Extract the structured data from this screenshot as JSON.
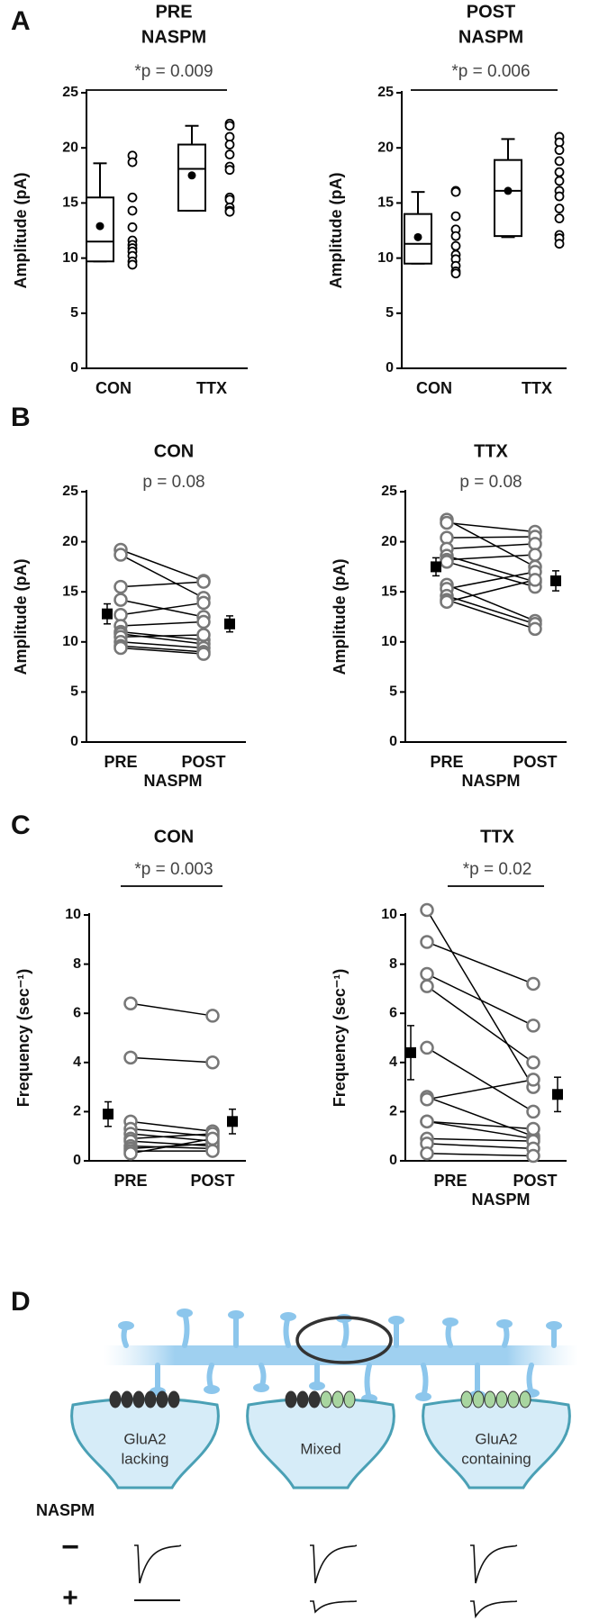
{
  "panels": [
    "A",
    "B",
    "C",
    "D"
  ],
  "chart_data": [
    {
      "type": "box",
      "title": [
        "PRE",
        "NASPM"
      ],
      "annotation": "*p = 0.009",
      "bracket": true,
      "ylabel": "Amplitude (pA)",
      "ylim": [
        0,
        25
      ],
      "yticks": [
        0,
        5,
        10,
        15,
        20,
        25
      ],
      "categories": [
        "CON",
        "TTX"
      ],
      "color": "#000000",
      "boxes": [
        {
          "min": 9.7,
          "q1": 9.7,
          "median": 11.5,
          "q3": 15.5,
          "max": 18.6,
          "mean": 12.9,
          "points": [
            19.3,
            18.7,
            15.5,
            14.3,
            12.8,
            11.6,
            11.2,
            10.9,
            10.6,
            10.2,
            9.7,
            9.4
          ]
        },
        {
          "min": 14.3,
          "q1": 14.3,
          "median": 18.1,
          "q3": 20.3,
          "max": 22.0,
          "mean": 17.5,
          "points": [
            22.2,
            22.0,
            21.0,
            20.3,
            19.4,
            18.3,
            18.0,
            15.5,
            15.3,
            14.6,
            14.3,
            14.2
          ]
        }
      ]
    },
    {
      "type": "box",
      "title": [
        "POST",
        "NASPM"
      ],
      "annotation": "*p = 0.006",
      "bracket": true,
      "ylabel": "Amplitude (pA)",
      "ylim": [
        0,
        25
      ],
      "yticks": [
        0,
        5,
        10,
        15,
        20,
        25
      ],
      "categories": [
        "CON",
        "TTX"
      ],
      "color": "#000000",
      "boxes": [
        {
          "min": 9.5,
          "q1": 9.5,
          "median": 11.3,
          "q3": 14.0,
          "max": 16.0,
          "mean": 11.9,
          "points": [
            16.1,
            16.0,
            13.8,
            12.6,
            12.0,
            11.1,
            10.3,
            9.9,
            9.3,
            8.8,
            8.6
          ]
        },
        {
          "min": 11.9,
          "q1": 12.0,
          "median": 16.1,
          "q3": 18.9,
          "max": 20.8,
          "mean": 16.1,
          "points": [
            21.0,
            20.5,
            19.8,
            18.8,
            17.8,
            17.0,
            16.1,
            15.6,
            14.5,
            13.6,
            12.1,
            11.8,
            11.3
          ]
        }
      ]
    },
    {
      "type": "paired",
      "title": "CON",
      "annotation": "p = 0.08",
      "bracket": false,
      "ylabel": "Amplitude (pA)",
      "xlabel": "NASPM",
      "ylim": [
        0,
        25
      ],
      "yticks": [
        0,
        5,
        10,
        15,
        20,
        25
      ],
      "categories": [
        "PRE",
        "POST"
      ],
      "point_color": "#777777",
      "color": "#000000",
      "values": [
        [
          19.2,
          18.7,
          15.5,
          14.2,
          12.7,
          11.6,
          11.0,
          10.8,
          10.5,
          10.0,
          9.6,
          9.4
        ],
        [
          16.1,
          14.4,
          16.0,
          12.5,
          13.9,
          12.0,
          10.2,
          9.8,
          10.7,
          9.4,
          9.0,
          8.8
        ]
      ],
      "means": [
        12.8,
        11.8
      ],
      "errors": [
        1.0,
        0.8
      ]
    },
    {
      "type": "paired",
      "title": "TTX",
      "annotation": "p = 0.08",
      "bracket": false,
      "ylabel": "Amplitude (pA)",
      "xlabel": "NASPM",
      "ylim": [
        0,
        25
      ],
      "yticks": [
        0,
        5,
        10,
        15,
        20,
        25
      ],
      "categories": [
        "PRE",
        "POST"
      ],
      "point_color": "#777777",
      "color": "#000000",
      "values": [
        [
          22.2,
          21.9,
          20.4,
          19.3,
          18.6,
          18.2,
          18.0,
          15.7,
          15.3,
          14.6,
          14.2,
          14.0
        ],
        [
          17.5,
          21.0,
          20.5,
          19.8,
          16.0,
          18.7,
          15.5,
          12.1,
          17.0,
          11.8,
          11.3,
          16.2
        ]
      ],
      "means": [
        17.5,
        16.1
      ],
      "errors": [
        0.9,
        1.0
      ]
    },
    {
      "type": "paired",
      "title": "CON",
      "annotation": "*p = 0.003",
      "bracket": true,
      "ylabel": "Frequency (sec⁻¹)",
      "ylim": [
        0,
        10
      ],
      "yticks": [
        0,
        2,
        4,
        6,
        8,
        10
      ],
      "categories": [
        "PRE",
        "POST"
      ],
      "point_color": "#777777",
      "color": "#000000",
      "values": [
        [
          6.4,
          4.2,
          1.6,
          1.3,
          1.1,
          0.9,
          0.8,
          0.6,
          0.5,
          0.4,
          0.3
        ],
        [
          5.9,
          4.0,
          1.2,
          1.0,
          0.8,
          1.1,
          0.6,
          0.5,
          0.7,
          0.4,
          0.9
        ]
      ],
      "means": [
        1.9,
        1.6
      ],
      "errors": [
        0.5,
        0.5
      ]
    },
    {
      "type": "paired",
      "title": "TTX",
      "annotation": "*p = 0.02",
      "bracket": true,
      "ylabel": "Frequency (sec⁻¹)",
      "xlabel": "NASPM",
      "ylim": [
        0,
        10
      ],
      "yticks": [
        0,
        2,
        4,
        6,
        8,
        10
      ],
      "categories": [
        "PRE",
        "POST"
      ],
      "point_color": "#777777",
      "color": "#000000",
      "values": [
        [
          10.2,
          8.9,
          7.6,
          7.1,
          4.6,
          2.6,
          2.5,
          1.6,
          1.6,
          0.9,
          0.7,
          0.3
        ],
        [
          3.0,
          7.2,
          5.5,
          4.0,
          2.0,
          1.0,
          3.3,
          0.9,
          1.3,
          0.8,
          0.5,
          0.2
        ]
      ],
      "means": [
        4.4,
        2.7
      ],
      "errors": [
        1.1,
        0.7
      ]
    }
  ],
  "diagram": {
    "terminals": [
      {
        "label": [
          "GluA2",
          "lacking"
        ]
      },
      {
        "label": [
          "Mixed"
        ]
      },
      {
        "label": [
          "GluA2",
          "containing"
        ]
      }
    ],
    "row_label": "NASPM",
    "rows": [
      "−",
      "+"
    ]
  }
}
